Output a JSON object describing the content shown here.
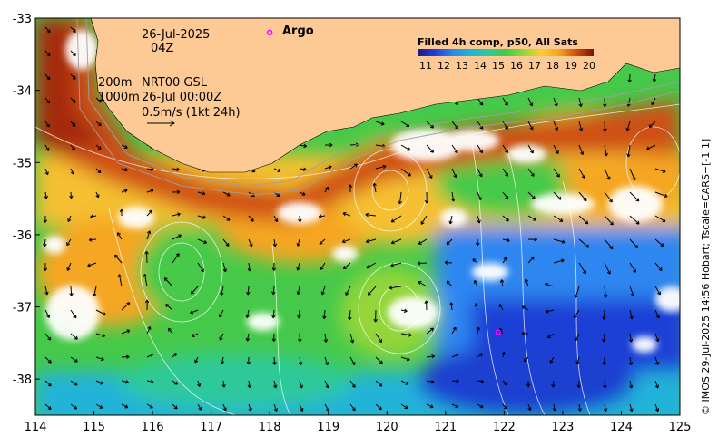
{
  "map": {
    "lon_range": [
      114,
      125
    ],
    "lat_range": [
      -38.5,
      -33
    ],
    "lon_ticks": [
      "114",
      "115",
      "116",
      "117",
      "118",
      "119",
      "120",
      "121",
      "122",
      "123",
      "124",
      "125"
    ],
    "lat_ticks": [
      "-33",
      "-34",
      "-35",
      "-36",
      "-37",
      "-38"
    ],
    "lon_tick_values": [
      114,
      115,
      116,
      117,
      118,
      119,
      120,
      121,
      122,
      123,
      124,
      125
    ],
    "lat_tick_values": [
      -33,
      -34,
      -35,
      -36,
      -37,
      -38
    ],
    "land_color": "#fdc995",
    "argo_color": "#ff00ff",
    "argo_floats": [
      {
        "lon": 118.0,
        "lat": -33.2
      },
      {
        "lon": 121.9,
        "lat": -37.35
      }
    ]
  },
  "annotations": {
    "date": "26-Jul-2025",
    "time": "04Z",
    "depth_200": "200m",
    "depth_1000": "1000m",
    "gsl_label": "NRT00 GSL",
    "gsl_time": "26-Jul 00:00Z",
    "arrow_scale": "0.5m/s (1kt 24h)",
    "argo_label": "Argo"
  },
  "colorbar": {
    "title": "Filled 4h comp, p50, All Sats",
    "ticks": [
      "11",
      "12",
      "13",
      "14",
      "15",
      "16",
      "17",
      "18",
      "19",
      "20"
    ],
    "colors": [
      "#1a1a8c",
      "#1f3fd6",
      "#2e86f0",
      "#21b3d9",
      "#2fc99a",
      "#46c94a",
      "#93d63a",
      "#d8e62c",
      "#f5d033",
      "#f5a623",
      "#ea7a1c",
      "#cf4f14",
      "#a52a0a",
      "#7a1205"
    ]
  },
  "credit": "© IMOS 29-Jul-2025 14:56 Hobart; Tscale=CARS+[-1 1]"
}
